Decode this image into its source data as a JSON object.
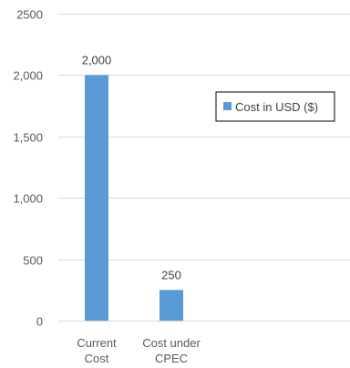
{
  "chart_data": {
    "type": "bar",
    "categories": [
      [
        "Current",
        "Cost"
      ],
      [
        "Cost under",
        "CPEC"
      ]
    ],
    "series": [
      {
        "name": "Cost in USD ($)",
        "values": [
          2000,
          250
        ],
        "color": "#5b9bd5"
      }
    ],
    "data_labels": [
      "2,000",
      "250"
    ],
    "y_ticks": [
      "0",
      "500",
      "1,000",
      "1,500",
      "2,000",
      "2500"
    ],
    "y_tick_values": [
      0,
      500,
      1000,
      1500,
      2000,
      2500
    ],
    "ylim": [
      0,
      2500
    ],
    "grid": true,
    "legend": "right"
  }
}
